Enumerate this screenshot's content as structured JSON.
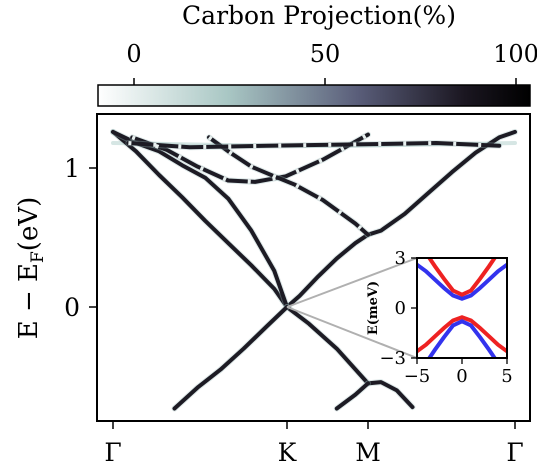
{
  "chart_data": [
    {
      "type": "line",
      "title": "",
      "xlabel": "",
      "ylabel": "E − E_F(eV)",
      "ylabel_main": "E − E",
      "ylabel_sub": "F",
      "ylabel_unit": "(eV)",
      "xticks": [
        "Γ",
        "K",
        "M",
        "Γ"
      ],
      "yticks": [
        "1",
        "0"
      ],
      "ylim": [
        -0.75,
        1.3
      ],
      "grid": false,
      "colormap": {
        "title": "Carbon Projection(%)",
        "ticks": [
          "0",
          "50",
          "100"
        ],
        "range": [
          0,
          100
        ],
        "colors": [
          "#ffffff",
          "#a9c7c4",
          "#5a5e7a",
          "#1a1620",
          "#000000"
        ]
      },
      "projection_note_color": "#1d1b24",
      "bands": [
        {
          "name": "",
          "x": [
            0.0,
            0.06,
            0.12,
            0.18,
            0.24,
            0.3,
            0.36,
            0.42,
            0.453
          ],
          "y": [
            1.26,
            1.12,
            0.95,
            0.79,
            0.62,
            0.46,
            0.3,
            0.13,
            0.0
          ]
        },
        {
          "name": "",
          "x": [
            0.453,
            0.48,
            0.52,
            0.56,
            0.6,
            0.627
          ],
          "y": [
            0.0,
            0.08,
            0.22,
            0.35,
            0.46,
            0.52
          ]
        },
        {
          "name": "",
          "x": [
            0.627,
            0.66,
            0.72,
            0.78,
            0.84,
            0.9,
            0.96,
            1.0
          ],
          "y": [
            0.52,
            0.55,
            0.67,
            0.82,
            0.97,
            1.11,
            1.22,
            1.26
          ]
        },
        {
          "name": "",
          "x": [
            0.0,
            0.06,
            0.12,
            0.18,
            0.24,
            0.3,
            0.36,
            0.42,
            0.453
          ],
          "y": [
            1.26,
            1.18,
            1.12,
            1.02,
            0.93,
            0.78,
            0.55,
            0.26,
            0.0
          ]
        },
        {
          "name": "",
          "x": [
            0.453,
            0.5,
            0.56,
            0.627
          ],
          "y": [
            0.0,
            -0.12,
            -0.3,
            -0.55
          ]
        },
        {
          "name": "",
          "x": [
            0.627,
            0.66,
            0.7,
            0.74
          ],
          "y": [
            -0.55,
            -0.54,
            -0.6,
            -0.72
          ]
        },
        {
          "name": "",
          "x": [
            0.453,
            0.4,
            0.34,
            0.28,
            0.22,
            0.16
          ],
          "y": [
            0.0,
            -0.14,
            -0.3,
            -0.45,
            -0.58,
            -0.73
          ]
        },
        {
          "name": "",
          "x": [
            0.627,
            0.6,
            0.56
          ],
          "y": [
            -0.55,
            -0.63,
            -0.73
          ]
        },
        {
          "name": "",
          "x": [
            0.05,
            0.14,
            0.22,
            0.3,
            0.37,
            0.45,
            0.53,
            0.627
          ],
          "y": [
            1.22,
            1.13,
            1.01,
            0.91,
            0.9,
            0.94,
            1.06,
            1.24
          ]
        },
        {
          "name": "",
          "x": [
            0.25,
            0.3,
            0.36,
            0.42,
            0.47,
            0.53,
            0.6,
            0.627
          ],
          "y": [
            1.22,
            1.12,
            1.01,
            0.94,
            0.88,
            0.77,
            0.6,
            0.52
          ]
        },
        {
          "name": "",
          "x": [
            0.04,
            0.2,
            0.4,
            0.6,
            0.8,
            0.96
          ],
          "y": [
            1.18,
            1.15,
            1.16,
            1.17,
            1.18,
            1.16
          ]
        }
      ],
      "flat_bands": [
        {
          "name": "",
          "x": [
            0.0,
            0.2,
            0.4,
            0.6,
            0.8,
            1.0
          ],
          "y": [
            1.18,
            1.17,
            1.16,
            1.16,
            1.17,
            1.18
          ]
        }
      ]
    },
    {
      "type": "line",
      "title": "",
      "xlabel": "",
      "ylabel": "E(meV)",
      "xticks": [
        "−5",
        "0",
        "5"
      ],
      "yticks": [
        "3",
        "0",
        "−3"
      ],
      "xlim": [
        -5,
        5
      ],
      "ylim": [
        -3,
        3
      ],
      "grid": false,
      "series": [
        {
          "name": "",
          "color": "#3333ee",
          "x": [
            -5,
            -4,
            -3,
            -2,
            -1,
            0,
            1,
            2,
            3,
            4,
            5
          ],
          "y": [
            2.6,
            2.2,
            1.7,
            1.2,
            0.75,
            0.55,
            0.75,
            1.2,
            1.7,
            2.2,
            2.6
          ]
        },
        {
          "name": "",
          "color": "#ee2222",
          "x": [
            -5,
            -4,
            -3,
            -2,
            -1,
            0,
            1,
            2,
            3,
            4,
            5
          ],
          "y": [
            -2.6,
            -2.2,
            -1.7,
            -1.2,
            -0.75,
            -0.55,
            -0.75,
            -1.2,
            -1.7,
            -2.2,
            -2.6
          ]
        },
        {
          "name": "",
          "color": "#ee2222",
          "x": [
            -5,
            -4,
            -3,
            -2,
            -1,
            0,
            1,
            2,
            3,
            4,
            5
          ],
          "y": [
            4.0,
            3.3,
            2.5,
            1.75,
            1.05,
            0.8,
            1.05,
            1.75,
            2.5,
            3.3,
            4.0
          ]
        },
        {
          "name": "",
          "color": "#3333ee",
          "x": [
            -5,
            -4,
            -3,
            -2,
            -1,
            0,
            1,
            2,
            3,
            4,
            5
          ],
          "y": [
            -4.0,
            -3.3,
            -2.5,
            -1.75,
            -1.05,
            -0.8,
            -1.05,
            -1.75,
            -2.5,
            -3.3,
            -4.0
          ]
        }
      ]
    }
  ]
}
